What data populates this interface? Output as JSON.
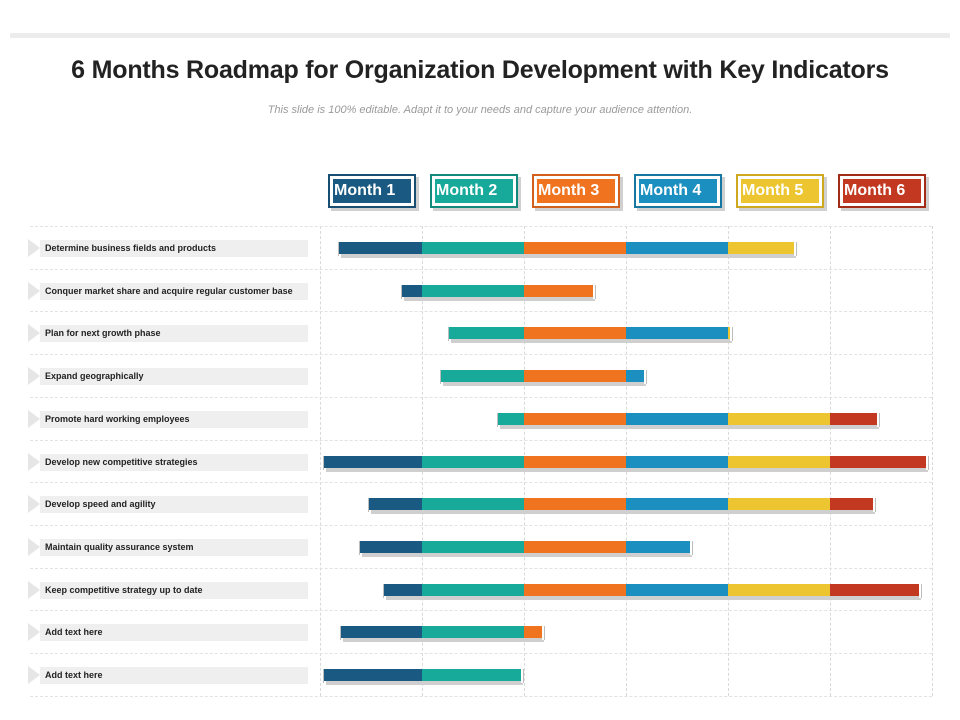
{
  "title": "6 Months Roadmap for Organization Development with Key Indicators",
  "subtitle": "This slide is 100% editable. Adapt it to your needs and capture your audience attention.",
  "chart_data": {
    "type": "gantt",
    "months": [
      {
        "label": "Month 1",
        "color": "#1a5a82",
        "border": "#174e72"
      },
      {
        "label": "Month 2",
        "color": "#17a99a",
        "border": "#12897d"
      },
      {
        "label": "Month 3",
        "color": "#f07320",
        "border": "#d2601a"
      },
      {
        "label": "Month 4",
        "color": "#1a8fc0",
        "border": "#1677a0"
      },
      {
        "label": "Month 5",
        "color": "#ecc531",
        "border": "#cfa81f"
      },
      {
        "label": "Month 6",
        "color": "#c23820",
        "border": "#a32c18"
      }
    ],
    "tasks": [
      {
        "label": "Determine business fields and products",
        "start": 0.15,
        "end": 4.65
      },
      {
        "label": "Conquer market share and acquire regular customer base",
        "start": 0.76,
        "end": 2.68
      },
      {
        "label": "Plan for next growth phase",
        "start": 1.23,
        "end": 4.02
      },
      {
        "label": "Expand geographically",
        "start": 1.15,
        "end": 3.18
      },
      {
        "label": "Promote hard working employees",
        "start": 1.71,
        "end": 5.46
      },
      {
        "label": "Develop new competitive strategies",
        "start": 0.0,
        "end": 5.94
      },
      {
        "label": "Develop speed and agility",
        "start": 0.44,
        "end": 5.42
      },
      {
        "label": "Maintain quality assurance system",
        "start": 0.35,
        "end": 3.63
      },
      {
        "label": "Keep competitive strategy up to date",
        "start": 0.59,
        "end": 5.87
      },
      {
        "label": "Add  text here",
        "start": 0.17,
        "end": 2.18
      },
      {
        "label": "Add  text here",
        "start": 0.0,
        "end": 1.97
      }
    ]
  }
}
